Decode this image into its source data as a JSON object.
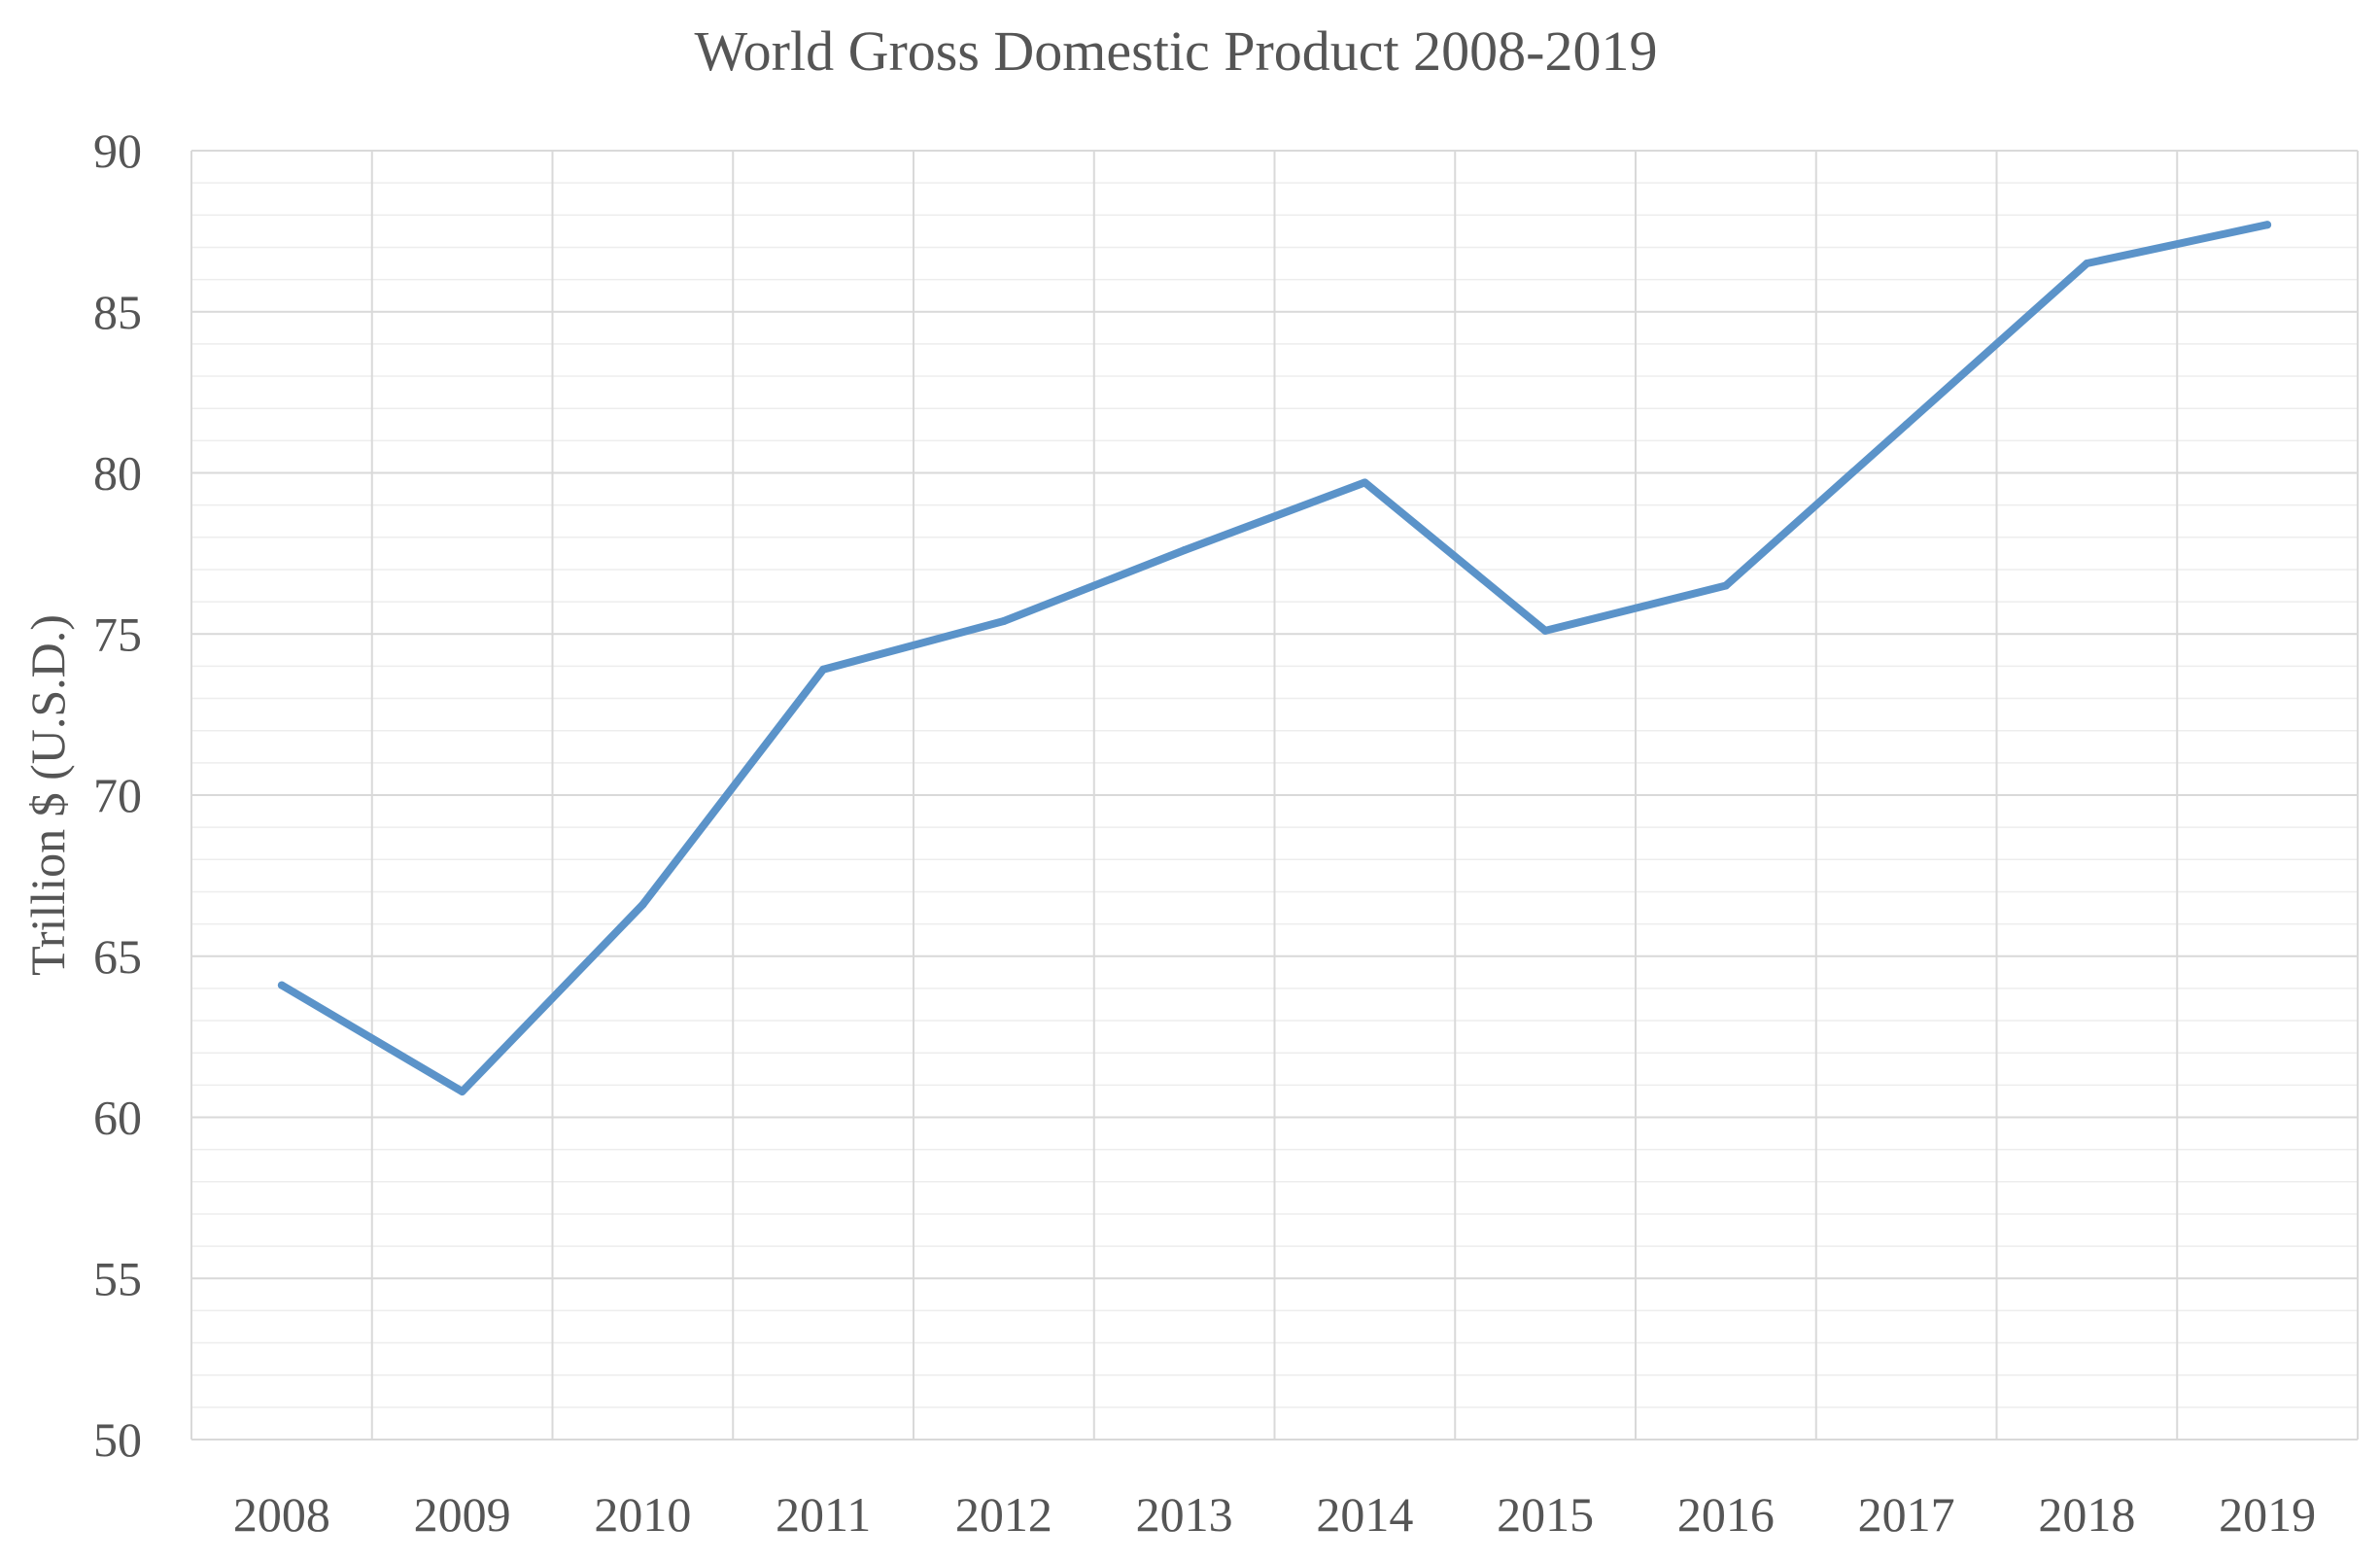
{
  "chart_data": {
    "type": "line",
    "title": "World Gross Domestic Product 2008-2019",
    "xlabel": "",
    "ylabel": "Trillion $ (U.S.D.)",
    "categories": [
      "2008",
      "2009",
      "2010",
      "2011",
      "2012",
      "2013",
      "2014",
      "2015",
      "2016",
      "2017",
      "2018",
      "2019"
    ],
    "series": [
      {
        "name": "World GDP",
        "values": [
          64.1,
          60.8,
          66.6,
          73.9,
          75.4,
          77.6,
          79.7,
          75.1,
          76.5,
          81.5,
          86.5,
          87.7
        ]
      }
    ],
    "ylim": [
      50,
      90
    ],
    "yticks": [
      "50",
      "55",
      "60",
      "65",
      "70",
      "75",
      "80",
      "85",
      "90"
    ],
    "grid": true,
    "minor_grid": true,
    "legend": "none",
    "colors": {
      "line": "#5B93C9",
      "major_grid": "#D9D9D9",
      "minor_grid": "#EDEDED",
      "text": "#555555"
    }
  }
}
